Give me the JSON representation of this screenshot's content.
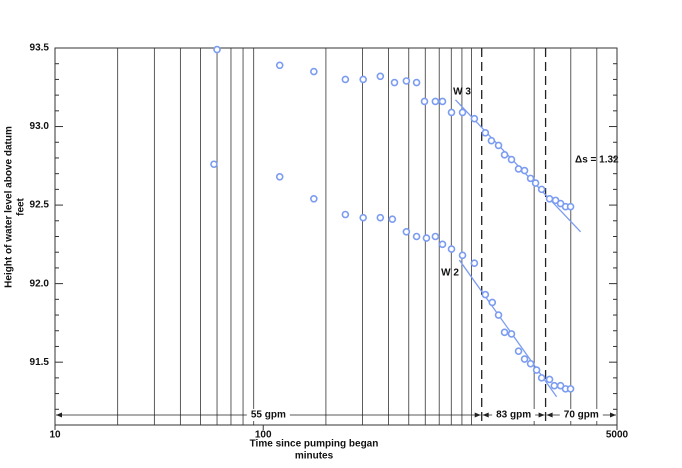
{
  "chart_data": {
    "type": "scatter",
    "xlabel": "Time since pumping began",
    "xlabel_units": "minutes",
    "ylabel": "Height of water level above datum",
    "ylabel_units": "feet",
    "log_x": true,
    "grid": true,
    "xlim": [
      10,
      5000
    ],
    "ylim": [
      91.1,
      93.5
    ],
    "xticks": [
      10,
      100,
      5000
    ],
    "xminor": [
      20,
      30,
      40,
      50,
      60,
      70,
      80,
      90,
      200,
      300,
      400,
      500,
      600,
      700,
      800,
      900,
      1000,
      2000,
      3000,
      4000
    ],
    "yticks": [
      91.5,
      {
        "value": 92,
        "label": "92.0"
      },
      92.5,
      {
        "value": 93,
        "label": "93.0"
      },
      93.5
    ],
    "yminor": [
      91.2,
      91.3,
      91.4,
      91.6,
      91.7,
      91.8,
      91.9,
      92.1,
      92.2,
      92.3,
      92.4,
      92.6,
      92.7,
      92.8,
      92.9,
      93.1,
      93.2,
      93.3,
      93.4
    ],
    "series": [
      {
        "name": "W 3",
        "color": "#7b9cf0",
        "x": [
          60,
          120,
          175,
          248,
          302,
          365,
          427,
          487,
          545,
          595,
          671,
          726,
          802,
          906,
          1033,
          1166,
          1247,
          1349,
          1442,
          1557,
          1683,
          1799,
          1923,
          2032,
          2173,
          2371,
          2535,
          2679,
          2831,
          2992
        ],
        "values": [
          93.49,
          93.39,
          93.35,
          93.3,
          93.3,
          93.32,
          93.28,
          93.29,
          93.28,
          93.16,
          93.16,
          93.16,
          93.09,
          93.09,
          93.05,
          92.96,
          92.91,
          92.88,
          92.82,
          92.79,
          92.73,
          92.72,
          92.67,
          92.64,
          92.6,
          92.54,
          92.53,
          92.51,
          92.49,
          92.49
        ]
      },
      {
        "name": "W 2",
        "color": "#7b9cf0",
        "x": [
          58,
          120,
          175,
          248,
          302,
          365,
          417,
          487,
          545,
          608,
          671,
          726,
          802,
          906,
          1033,
          1166,
          1259,
          1349,
          1442,
          1557,
          1683,
          1799,
          1923,
          2055,
          2173,
          2371,
          2500,
          2679,
          2831,
          2992
        ],
        "values": [
          92.76,
          92.68,
          92.54,
          92.44,
          92.42,
          92.42,
          92.41,
          92.33,
          92.3,
          92.29,
          92.3,
          92.25,
          92.22,
          92.18,
          92.13,
          91.93,
          91.88,
          91.8,
          91.69,
          91.68,
          91.57,
          91.52,
          91.49,
          91.45,
          91.4,
          91.39,
          91.35,
          91.35,
          91.33,
          91.33
        ]
      }
    ],
    "trend_lines": [
      {
        "color": "#7b9cf0",
        "x": [
          838,
          3343
        ],
        "y": [
          93.17,
          92.33
        ]
      },
      {
        "color": "#7b9cf0",
        "x": [
          875,
          2564
        ],
        "y": [
          92.15,
          91.28
        ]
      }
    ],
    "periods": [
      {
        "label": "55 gpm",
        "start": 10,
        "end": 1120
      },
      {
        "label": "83 gpm",
        "start": 1120,
        "end": 2270
      },
      {
        "label": "70 gpm",
        "start": 2270,
        "end": 5000
      }
    ],
    "annotation": "Δs = 1.32"
  }
}
